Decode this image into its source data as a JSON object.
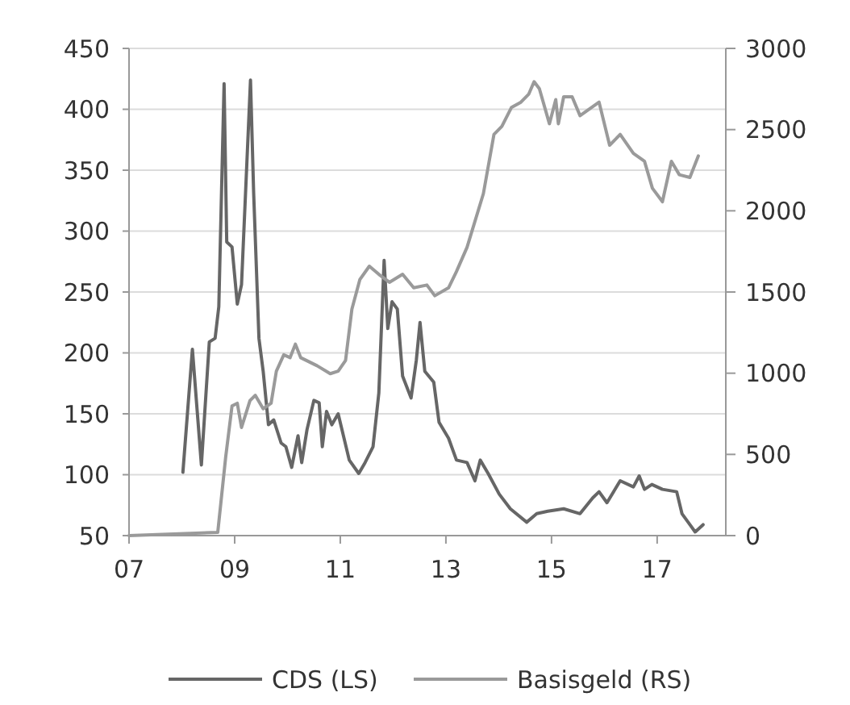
{
  "chart_data": {
    "type": "line",
    "xlim": [
      2007,
      2018.3
    ],
    "xticks": [
      {
        "value": 2007,
        "label": "07"
      },
      {
        "value": 2009,
        "label": "09"
      },
      {
        "value": 2011,
        "label": "11"
      },
      {
        "value": 2013,
        "label": "13"
      },
      {
        "value": 2015,
        "label": "15"
      },
      {
        "value": 2017,
        "label": "17"
      }
    ],
    "ylim": [
      50,
      450
    ],
    "yticks": [
      50,
      100,
      150,
      200,
      250,
      300,
      350,
      400,
      450
    ],
    "y2lim": [
      0,
      3000
    ],
    "y2ticks": [
      0,
      500,
      1000,
      1500,
      2000,
      2500,
      3000
    ],
    "grid": "y",
    "legend": "bottom",
    "line_style": "solid",
    "series": [
      {
        "name": "CDS (LS)",
        "color": "#666666",
        "x": [
          2008.02,
          2008.2,
          2008.37,
          2008.52,
          2008.63,
          2008.7,
          2008.8,
          2008.85,
          2008.95,
          2009.05,
          2009.13,
          2009.3,
          2009.36,
          2009.46,
          2009.54,
          2009.64,
          2009.74,
          2009.88,
          2009.97,
          2010.08,
          2010.2,
          2010.27,
          2010.37,
          2010.5,
          2010.6,
          2010.66,
          2010.74,
          2010.84,
          2010.96,
          2011.17,
          2011.35,
          2011.47,
          2011.62,
          2011.73,
          2011.83,
          2011.9,
          2011.98,
          2012.08,
          2012.18,
          2012.34,
          2012.44,
          2012.51,
          2012.6,
          2012.77,
          2012.87,
          2013.05,
          2013.2,
          2013.4,
          2013.55,
          2013.65,
          2013.8,
          2014.01,
          2014.22,
          2014.53,
          2014.72,
          2014.93,
          2015.23,
          2015.54,
          2015.78,
          2015.9,
          2016.05,
          2016.3,
          2016.55,
          2016.66,
          2016.76,
          2016.9,
          2017.1,
          2017.37,
          2017.47,
          2017.62,
          2017.72,
          2017.87
        ],
        "values": [
          102,
          203,
          108,
          209,
          212,
          238,
          421,
          291,
          287,
          240,
          256,
          424,
          331,
          212,
          185,
          141,
          145,
          126,
          123,
          106,
          132,
          110,
          137,
          161,
          159,
          123,
          152,
          141,
          150,
          112,
          101,
          110,
          123,
          167,
          276,
          220,
          242,
          236,
          181,
          163,
          194,
          225,
          185,
          176,
          143,
          130,
          112,
          110,
          95,
          112,
          101,
          84,
          72,
          61,
          68,
          70,
          72,
          68,
          81,
          86,
          77,
          95,
          90,
          99,
          88,
          92,
          88,
          86,
          68,
          59,
          53,
          59
        ]
      },
      {
        "name": "Basisgeld (RS)",
        "color": "#9a9a9a",
        "axis": "y2",
        "x": [
          2007,
          2008.68,
          2008.83,
          2008.95,
          2009.05,
          2009.13,
          2009.29,
          2009.39,
          2009.54,
          2009.69,
          2009.79,
          2009.93,
          2010.05,
          2010.15,
          2010.25,
          2010.56,
          2010.81,
          2010.96,
          2011.1,
          2011.22,
          2011.37,
          2011.55,
          2011.73,
          2011.93,
          2012.18,
          2012.39,
          2012.64,
          2012.79,
          2013.05,
          2013.2,
          2013.4,
          2013.71,
          2013.91,
          2014.06,
          2014.24,
          2014.42,
          2014.57,
          2014.67,
          2014.77,
          2014.96,
          2015.08,
          2015.13,
          2015.23,
          2015.39,
          2015.54,
          2015.9,
          2016.1,
          2016.3,
          2016.55,
          2016.76,
          2016.91,
          2017.1,
          2017.27,
          2017.42,
          2017.62,
          2017.78
        ],
        "values": [
          0,
          20,
          483,
          798,
          815,
          666,
          831,
          864,
          781,
          815,
          1013,
          1113,
          1096,
          1179,
          1096,
          1046,
          997,
          1013,
          1079,
          1394,
          1576,
          1659,
          1609,
          1560,
          1609,
          1526,
          1543,
          1477,
          1526,
          1626,
          1775,
          2106,
          2470,
          2520,
          2636,
          2669,
          2719,
          2795,
          2752,
          2536,
          2685,
          2536,
          2702,
          2702,
          2586,
          2669,
          2404,
          2470,
          2354,
          2305,
          2139,
          2056,
          2305,
          2222,
          2205,
          2338
        ]
      }
    ]
  }
}
